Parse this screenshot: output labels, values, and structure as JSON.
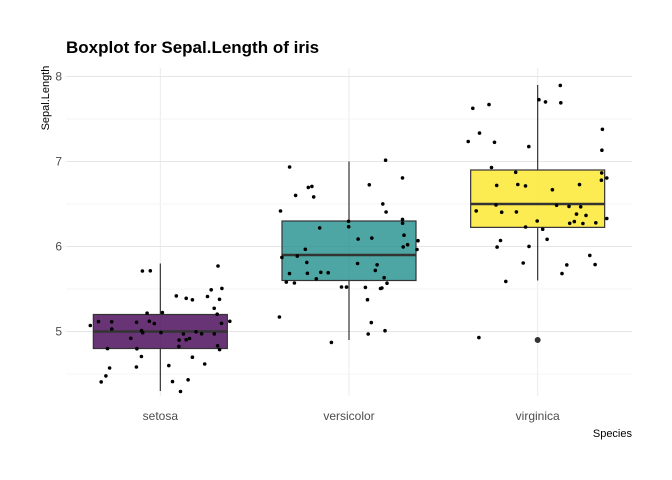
{
  "chart_data": {
    "type": "boxplot",
    "title": "Boxplot for Sepal.Length of iris",
    "xlabel": "Species",
    "ylabel": "Sepal.Length",
    "categories": [
      "setosa",
      "versicolor",
      "virginica"
    ],
    "yticks": [
      5,
      6,
      7,
      8
    ],
    "ylim": [
      4.15,
      8.1
    ],
    "grid": true,
    "boxes": [
      {
        "category": "setosa",
        "color": "#440154",
        "min": 4.3,
        "q1": 4.8,
        "median": 5.0,
        "q3": 5.2,
        "max": 5.8,
        "outliers": [],
        "points": [
          5.1,
          4.9,
          4.7,
          4.6,
          5.0,
          5.4,
          4.6,
          5.0,
          4.4,
          4.9,
          5.4,
          4.8,
          4.8,
          4.3,
          5.8,
          5.7,
          5.4,
          5.1,
          5.7,
          5.1,
          5.4,
          5.1,
          4.6,
          5.1,
          4.8,
          5.0,
          5.0,
          5.2,
          5.2,
          4.7,
          4.8,
          5.4,
          5.2,
          5.5,
          4.9,
          5.0,
          5.5,
          4.9,
          4.4,
          5.1,
          5.0,
          4.5,
          4.4,
          5.0,
          5.1,
          4.8,
          5.1,
          4.6,
          5.3,
          5.0
        ]
      },
      {
        "category": "versicolor",
        "color": "#21908C",
        "min": 4.9,
        "q1": 5.6,
        "median": 5.9,
        "q3": 6.3,
        "max": 7.0,
        "outliers": [],
        "points": [
          7.0,
          6.4,
          6.9,
          5.5,
          6.5,
          5.7,
          6.3,
          4.9,
          6.6,
          5.2,
          5.0,
          5.9,
          6.0,
          6.1,
          5.6,
          6.7,
          5.6,
          5.8,
          6.2,
          5.6,
          5.9,
          6.1,
          6.3,
          6.1,
          6.4,
          6.6,
          6.8,
          6.7,
          6.0,
          5.7,
          5.5,
          5.5,
          5.8,
          6.0,
          5.4,
          6.0,
          6.7,
          6.3,
          5.6,
          5.5,
          5.5,
          6.1,
          5.8,
          5.0,
          5.6,
          5.7,
          5.7,
          6.2,
          5.1,
          5.7
        ]
      },
      {
        "category": "virginica",
        "color": "#FDE725",
        "min": 5.6,
        "q1": 6.225,
        "median": 6.5,
        "q3": 6.9,
        "max": 7.9,
        "outliers": [
          4.9
        ],
        "points": [
          6.3,
          5.8,
          7.1,
          6.3,
          6.5,
          7.6,
          4.9,
          7.3,
          6.7,
          7.2,
          6.5,
          6.4,
          6.8,
          5.7,
          5.8,
          6.4,
          6.5,
          7.7,
          7.7,
          6.0,
          6.9,
          5.6,
          7.7,
          6.3,
          6.7,
          7.2,
          6.2,
          6.1,
          6.4,
          7.2,
          7.4,
          7.9,
          6.4,
          6.3,
          6.1,
          7.7,
          6.3,
          6.4,
          6.0,
          6.9,
          6.7,
          6.9,
          5.8,
          6.8,
          6.7,
          6.7,
          6.3,
          6.5,
          6.2,
          5.9
        ]
      }
    ]
  }
}
